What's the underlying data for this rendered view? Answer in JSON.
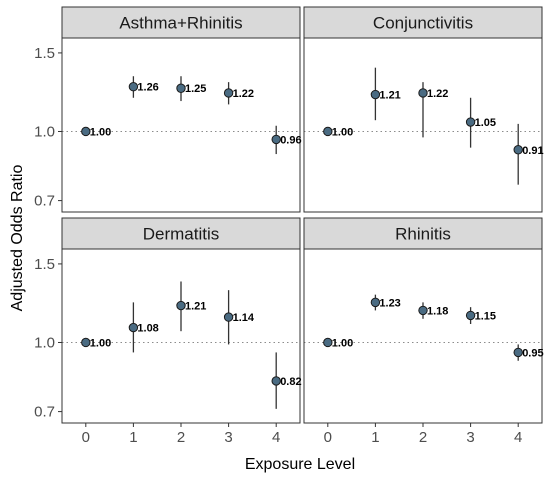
{
  "chart_data": {
    "type": "scatter",
    "xlabel": "Exposure Level",
    "ylabel": "Adjusted Odds Ratio",
    "x_ticks": [
      "0",
      "1",
      "2",
      "3",
      "4"
    ],
    "y_ticks": [
      0.7,
      1.0,
      1.5
    ],
    "y_tick_labels": [
      "0.7",
      "1.0",
      "1.5"
    ],
    "ylim": [
      0.66,
      1.62
    ],
    "y_scale": "log",
    "xlim": [
      -0.5,
      4.5
    ],
    "reference_line": 1.0,
    "point_color": "#4a6b82",
    "panels": [
      {
        "title": "Asthma+Rhinitis",
        "points": [
          {
            "x": 0,
            "value": 1.0,
            "lower": 1.0,
            "upper": 1.0,
            "label": "1.00"
          },
          {
            "x": 1,
            "value": 1.26,
            "lower": 1.19,
            "upper": 1.33,
            "label": "1.26"
          },
          {
            "x": 2,
            "value": 1.25,
            "lower": 1.17,
            "upper": 1.33,
            "label": "1.25"
          },
          {
            "x": 3,
            "value": 1.22,
            "lower": 1.15,
            "upper": 1.29,
            "label": "1.22"
          },
          {
            "x": 4,
            "value": 0.96,
            "lower": 0.89,
            "upper": 1.03,
            "label": "0.96"
          }
        ]
      },
      {
        "title": "Conjunctivitis",
        "points": [
          {
            "x": 0,
            "value": 1.0,
            "lower": 1.0,
            "upper": 1.0,
            "label": "1.00"
          },
          {
            "x": 1,
            "value": 1.21,
            "lower": 1.06,
            "upper": 1.39,
            "label": "1.21"
          },
          {
            "x": 2,
            "value": 1.22,
            "lower": 0.97,
            "upper": 1.29,
            "label": "1.22"
          },
          {
            "x": 3,
            "value": 1.05,
            "lower": 0.92,
            "upper": 1.19,
            "label": "1.05"
          },
          {
            "x": 4,
            "value": 0.91,
            "lower": 0.76,
            "upper": 1.04,
            "label": "0.91"
          }
        ]
      },
      {
        "title": "Dermatitis",
        "points": [
          {
            "x": 0,
            "value": 1.0,
            "lower": 1.0,
            "upper": 1.0,
            "label": "1.00"
          },
          {
            "x": 1,
            "value": 1.08,
            "lower": 0.95,
            "upper": 1.23,
            "label": "1.08"
          },
          {
            "x": 2,
            "value": 1.21,
            "lower": 1.06,
            "upper": 1.37,
            "label": "1.21"
          },
          {
            "x": 3,
            "value": 1.14,
            "lower": 0.99,
            "upper": 1.31,
            "label": "1.14"
          },
          {
            "x": 4,
            "value": 0.82,
            "lower": 0.71,
            "upper": 0.95,
            "label": "0.82"
          }
        ]
      },
      {
        "title": "Rhinitis",
        "points": [
          {
            "x": 0,
            "value": 1.0,
            "lower": 1.0,
            "upper": 1.0,
            "label": "1.00"
          },
          {
            "x": 1,
            "value": 1.23,
            "lower": 1.18,
            "upper": 1.28,
            "label": "1.23"
          },
          {
            "x": 2,
            "value": 1.18,
            "lower": 1.13,
            "upper": 1.23,
            "label": "1.18"
          },
          {
            "x": 3,
            "value": 1.15,
            "lower": 1.1,
            "upper": 1.2,
            "label": "1.15"
          },
          {
            "x": 4,
            "value": 0.95,
            "lower": 0.91,
            "upper": 0.99,
            "label": "0.95"
          }
        ]
      }
    ]
  }
}
